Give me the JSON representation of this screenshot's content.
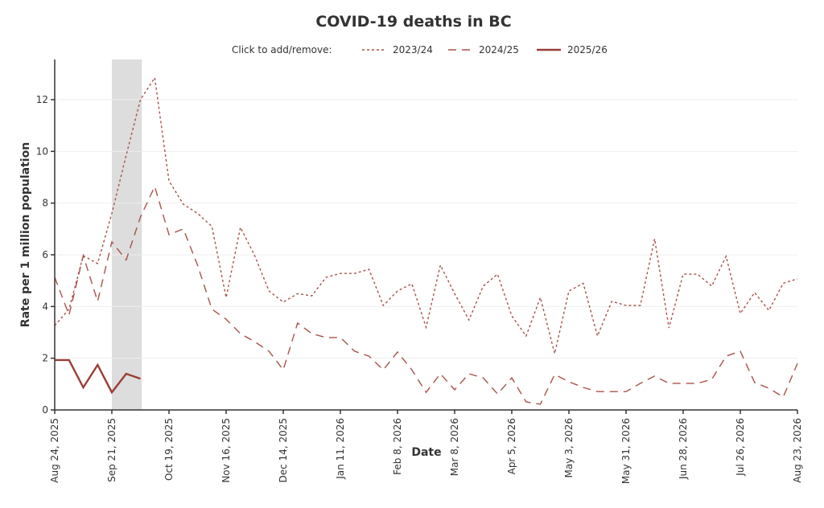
{
  "chart_data": {
    "type": "line",
    "title": "COVID-19 deaths in BC",
    "legend_prompt": "Click to add/remove:",
    "legend_position": "top-center",
    "xlabel": "Date",
    "ylabel": "Rate per 1 million population",
    "ylim": [
      0,
      13.5
    ],
    "yticks": [
      0,
      2,
      4,
      6,
      8,
      10,
      12
    ],
    "grid": true,
    "x_week_count": 53,
    "xticks": [
      {
        "week": 0,
        "label": "Aug 24, 2025"
      },
      {
        "week": 4,
        "label": "Sep 21, 2025"
      },
      {
        "week": 8,
        "label": "Oct 19, 2025"
      },
      {
        "week": 12,
        "label": "Nov 16, 2025"
      },
      {
        "week": 16,
        "label": "Dec 14, 2025"
      },
      {
        "week": 20,
        "label": "Jan 11, 2026"
      },
      {
        "week": 24,
        "label": "Feb 8, 2026"
      },
      {
        "week": 28,
        "label": "Mar 8, 2026"
      },
      {
        "week": 32,
        "label": "Apr 5, 2026"
      },
      {
        "week": 36,
        "label": "May 3, 2026"
      },
      {
        "week": 40,
        "label": "May 31, 2026"
      },
      {
        "week": 44,
        "label": "Jun 28, 2026"
      },
      {
        "week": 48,
        "label": "Jul 26, 2026"
      },
      {
        "week": 52,
        "label": "Aug 23, 2026"
      }
    ],
    "highlight_band": {
      "start_week": 4,
      "end_week": 6.1,
      "color": "#dddddd"
    },
    "series": [
      {
        "name": "2023/24",
        "style": "dotted",
        "color": "#a9524a",
        "values": [
          3.26,
          3.9,
          5.97,
          5.66,
          7.6,
          9.85,
          12.0,
          12.85,
          8.86,
          7.96,
          7.6,
          7.1,
          4.35,
          7.06,
          5.97,
          4.6,
          4.17,
          4.5,
          4.41,
          5.13,
          5.28,
          5.28,
          5.44,
          4.04,
          4.6,
          4.88,
          3.2,
          5.6,
          4.5,
          3.48,
          4.79,
          5.25,
          3.64,
          2.86,
          4.35,
          2.18,
          4.6,
          4.9,
          2.86,
          4.2,
          4.04,
          4.04,
          6.62,
          3.17,
          5.25,
          5.25,
          4.79,
          5.94,
          3.73,
          4.54,
          3.85,
          4.9,
          5.07
        ]
      },
      {
        "name": "2024/25",
        "style": "dashed",
        "color": "#a9524a",
        "values": [
          5.13,
          3.67,
          5.97,
          4.2,
          6.5,
          5.8,
          7.46,
          8.64,
          6.78,
          7.0,
          5.6,
          3.9,
          3.51,
          2.95,
          2.64,
          2.27,
          1.55,
          3.36,
          2.95,
          2.8,
          2.8,
          2.27,
          2.08,
          1.55,
          2.24,
          1.55,
          0.68,
          1.4,
          0.78,
          1.4,
          1.24,
          0.62,
          1.24,
          0.31,
          0.22,
          1.37,
          1.09,
          0.87,
          0.71,
          0.71,
          0.71,
          1.03,
          1.31,
          1.03,
          1.03,
          1.03,
          1.18,
          2.08,
          2.27,
          1.06,
          0.84,
          0.5,
          1.8
        ]
      },
      {
        "name": "2025/26",
        "style": "solid",
        "color": "#9a3d35",
        "values": [
          1.93,
          1.93,
          0.87,
          1.74,
          0.68,
          1.4,
          1.21
        ]
      }
    ]
  }
}
